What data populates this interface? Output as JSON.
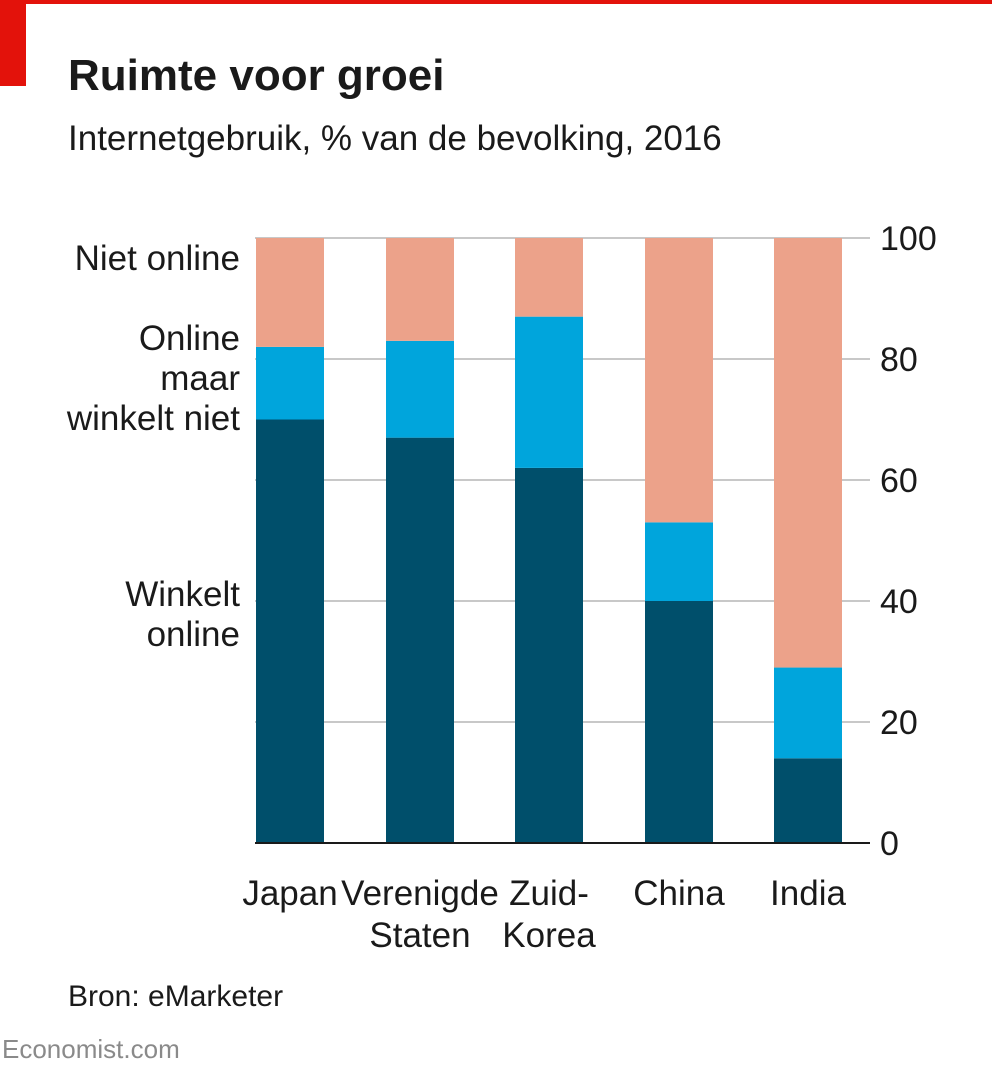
{
  "chart_data": {
    "type": "stacked-bar",
    "title": "Ruimte voor groei",
    "subtitle": "Internetgebruik, % van de bevolking, 2016",
    "source": "Bron: eMarketer",
    "footer": "Economist.com",
    "categories": [
      "Japan",
      "Verenigde\nStaten",
      "Zuid-\nKorea",
      "China",
      "India"
    ],
    "series": [
      {
        "name": "Winkelt\nonline",
        "color": "#004f6b",
        "values": [
          70,
          67,
          62,
          40,
          14
        ]
      },
      {
        "name": "Online\nmaar\nwinkelt niet",
        "color": "#00a5dc",
        "values": [
          12,
          16,
          25,
          13,
          15
        ]
      },
      {
        "name": "Niet online",
        "color": "#eca28a",
        "values": [
          18,
          17,
          13,
          47,
          71
        ]
      }
    ],
    "ylim": [
      0,
      100
    ],
    "yticks": [
      0,
      20,
      40,
      60,
      80,
      100
    ],
    "grid": true
  }
}
